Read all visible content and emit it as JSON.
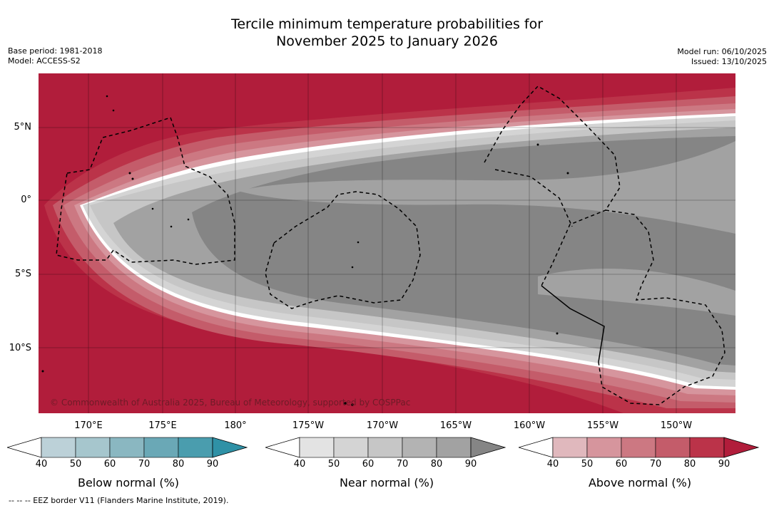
{
  "title": {
    "line1": "Tercile minimum temperature probabilities for",
    "line2": "November 2025 to January 2026"
  },
  "meta_left": {
    "base_period": "Base period: 1981-2018",
    "model": "Model: ACCESS-S2"
  },
  "meta_right": {
    "model_run": "Model run: 06/10/2025",
    "issued": "Issued: 13/10/2025"
  },
  "map": {
    "copyright": "© Commonwealth of Australia 2025, Bureau of Meteorology, supported by COSPPac",
    "lat_labels": [
      "5°N",
      "0°",
      "5°S",
      "10°S"
    ],
    "lon_labels": [
      "170°E",
      "175°E",
      "180°",
      "175°W",
      "170°W",
      "165°W",
      "160°W",
      "155°W",
      "150°W"
    ]
  },
  "colorbars": {
    "below": {
      "title": "Below normal (%)",
      "ticks": [
        "40",
        "50",
        "60",
        "70",
        "80",
        "90"
      ],
      "colors": [
        "#ffffff",
        "#bcd1d8",
        "#a6c6cd",
        "#8ab7c1",
        "#6aa8b6",
        "#4a9dae",
        "#2f91a6"
      ]
    },
    "near": {
      "title": "Near normal (%)",
      "ticks": [
        "40",
        "50",
        "60",
        "70",
        "80",
        "90"
      ],
      "colors": [
        "#ffffff",
        "#e3e3e3",
        "#d4d4d4",
        "#c6c6c6",
        "#b3b3b3",
        "#a2a2a2",
        "#858585"
      ]
    },
    "above": {
      "title": "Above normal (%)",
      "ticks": [
        "40",
        "50",
        "60",
        "70",
        "80",
        "90"
      ],
      "colors": [
        "#ffffff",
        "#e0b8bd",
        "#d6959d",
        "#cc7882",
        "#c45c6a",
        "#bb3349",
        "#b11d3b"
      ]
    }
  },
  "footer": {
    "legend_text": "-- -- -- EEZ border V11 (Flanders Marine Institute, 2019)."
  }
}
